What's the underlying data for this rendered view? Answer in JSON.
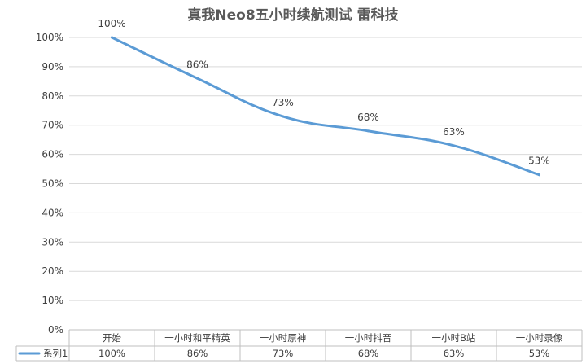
{
  "chart_data": {
    "type": "line",
    "title": "真我Neo8五小时续航测试 雷科技",
    "categories": [
      "开始",
      "一小时和平精英",
      "一小时原神",
      "一小时抖音",
      "一小时B站",
      "一小时录像"
    ],
    "series": [
      {
        "name": "系列1",
        "values": [
          100,
          86,
          73,
          68,
          63,
          53
        ],
        "labels": [
          "100%",
          "86%",
          "73%",
          "68%",
          "63%",
          "53%"
        ]
      }
    ],
    "ylim": [
      0,
      100
    ],
    "yticks": [
      "0%",
      "10%",
      "20%",
      "30%",
      "40%",
      "50%",
      "60%",
      "70%",
      "80%",
      "90%",
      "100%"
    ],
    "grid": true,
    "data_table": true,
    "smooth": true,
    "colors": {
      "series": "#5b9bd5",
      "grid": "#d9d9d9",
      "axis": "#bfbfbf"
    }
  }
}
